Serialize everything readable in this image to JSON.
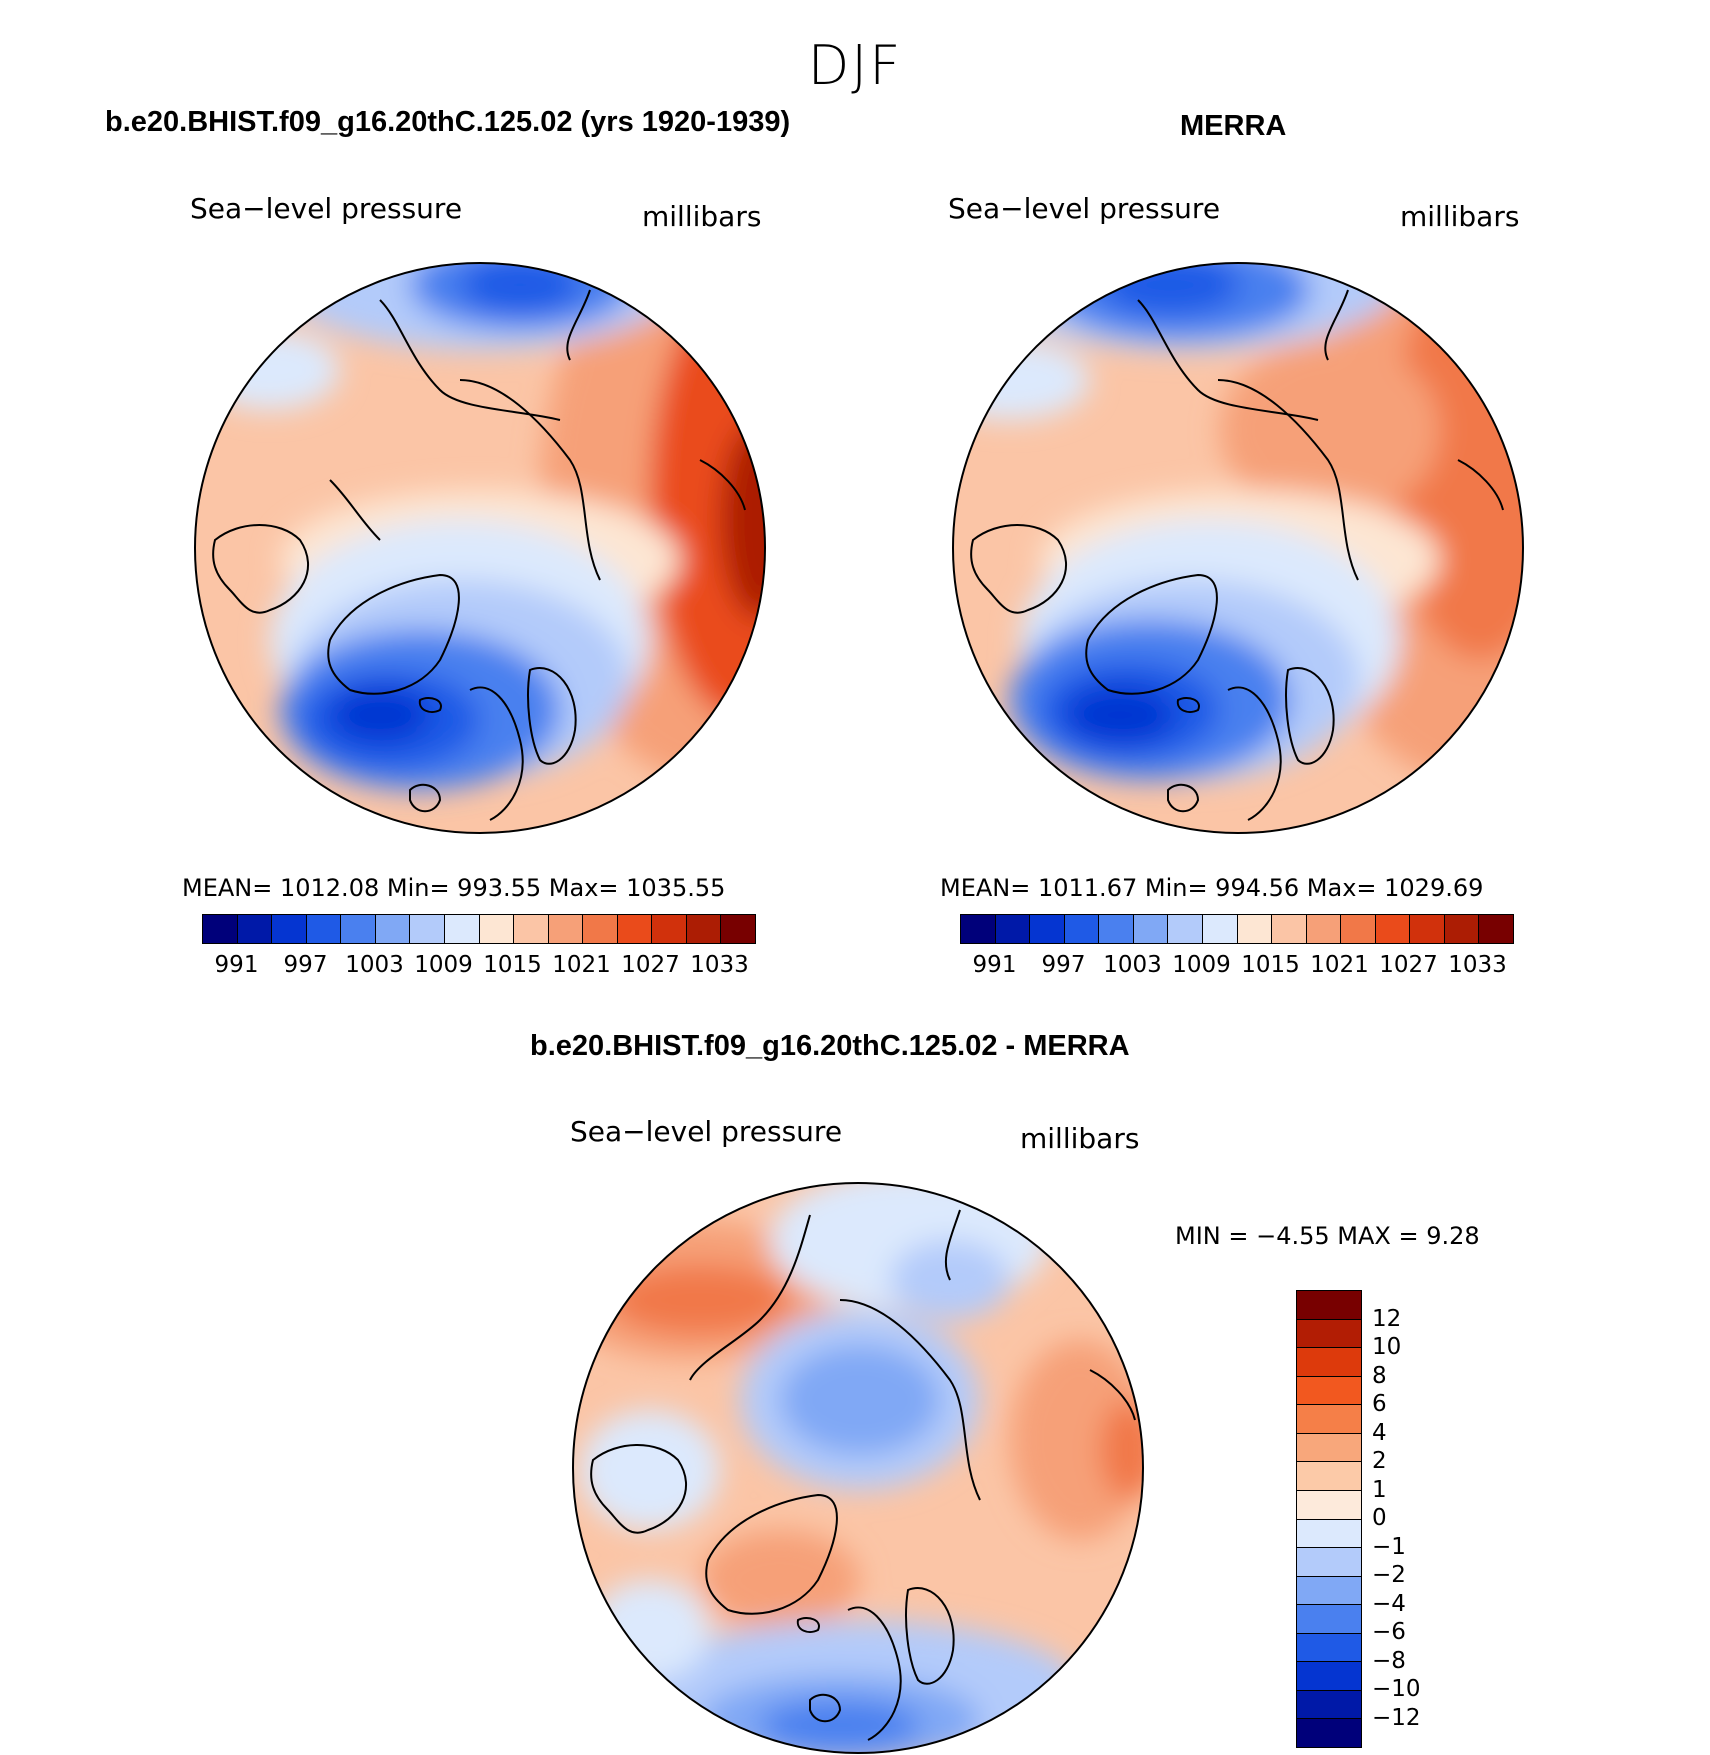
{
  "title": "DJF",
  "panels": {
    "model": {
      "title": "b.e20.BHIST.f09_g16.20thC.125.02 (yrs 1920-1939)",
      "left_label": "Sea−level pressure",
      "right_label": "millibars",
      "stats": "MEAN=  1012.08   Min=  993.55   Max=  1035.55"
    },
    "obs": {
      "title": "MERRA",
      "left_label": "Sea−level pressure",
      "right_label": "millibars",
      "stats": "MEAN=  1011.67   Min=  994.56   Max=  1029.69"
    },
    "diff": {
      "title": "b.e20.BHIST.f09_g16.20thC.125.02 - MERRA",
      "left_label": "Sea−level pressure",
      "right_label": "millibars",
      "stats": "MIN =   −4.55  MAX =     9.28"
    }
  },
  "abs_colorbar": {
    "ticks": [
      "991",
      "997",
      "1003",
      "1009",
      "1015",
      "1021",
      "1027",
      "1033"
    ],
    "colors": [
      "#00007a",
      "#0019a8",
      "#0535d1",
      "#1f5ae6",
      "#4a80ef",
      "#80a8f5",
      "#b3cbfa",
      "#dce9fd",
      "#fde6d3",
      "#fbc5a6",
      "#f6a078",
      "#f17848",
      "#ea4b1b",
      "#d1310c",
      "#ac1d04",
      "#780000"
    ]
  },
  "diff_colorbar": {
    "ticks": [
      "12",
      "10",
      "8",
      "6",
      "4",
      "2",
      "1",
      "0",
      "−1",
      "−2",
      "−4",
      "−6",
      "−8",
      "−10",
      "−12"
    ],
    "colors": [
      "#780000",
      "#b21d04",
      "#dd3a0c",
      "#f2581f",
      "#f57f48",
      "#f8a77b",
      "#fccaa8",
      "#fdeadb",
      "#dce9fd",
      "#b3cbfa",
      "#80a8f5",
      "#4a80ef",
      "#1f5ae6",
      "#0535d1",
      "#0019a8",
      "#00007a"
    ]
  }
}
